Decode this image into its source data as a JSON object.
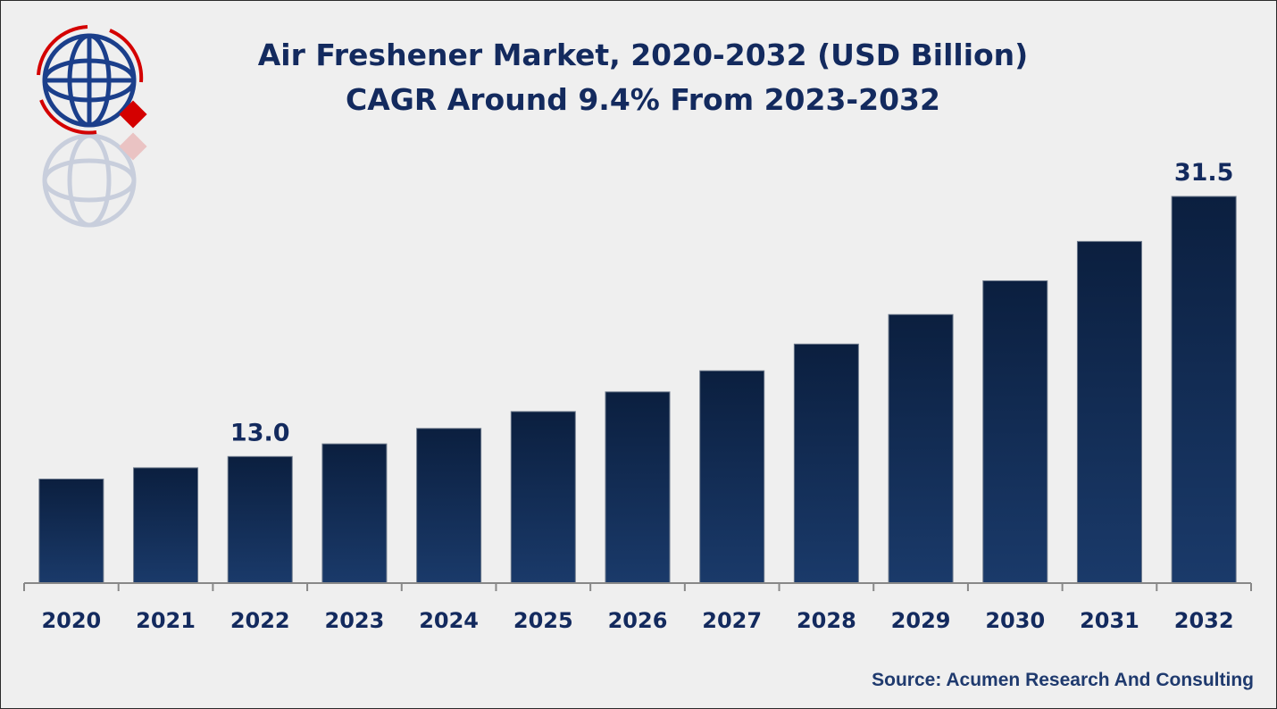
{
  "header": {
    "title": "Air Freshener Market, 2020-2032 (USD Billion)",
    "subtitle": "CAGR Around 9.4% From 2023-2032"
  },
  "source": "Source: Acumen Research And Consulting",
  "colors": {
    "bar_top": "#0b1f3f",
    "bar_bottom": "#1a3a6a",
    "text": "#132a5e",
    "logo_red": "#d40000",
    "logo_blue": "#1b3f8b"
  },
  "chart_data": {
    "type": "bar",
    "title": "Air Freshener Market, 2020-2032 (USD Billion)",
    "subtitle": "CAGR Around 9.4% From 2023-2032",
    "categories": [
      "2020",
      "2021",
      "2022",
      "2023",
      "2024",
      "2025",
      "2026",
      "2027",
      "2028",
      "2029",
      "2030",
      "2031",
      "2032"
    ],
    "values": [
      11.4,
      12.2,
      13.0,
      13.9,
      15.0,
      16.2,
      17.6,
      19.1,
      21.0,
      23.1,
      25.5,
      28.3,
      31.5
    ],
    "data_labels": {
      "2022": "13.0",
      "2032": "31.5"
    },
    "xlabel": "",
    "ylabel": "",
    "ylim": [
      4,
      33
    ],
    "grid": false,
    "legend": "none"
  }
}
